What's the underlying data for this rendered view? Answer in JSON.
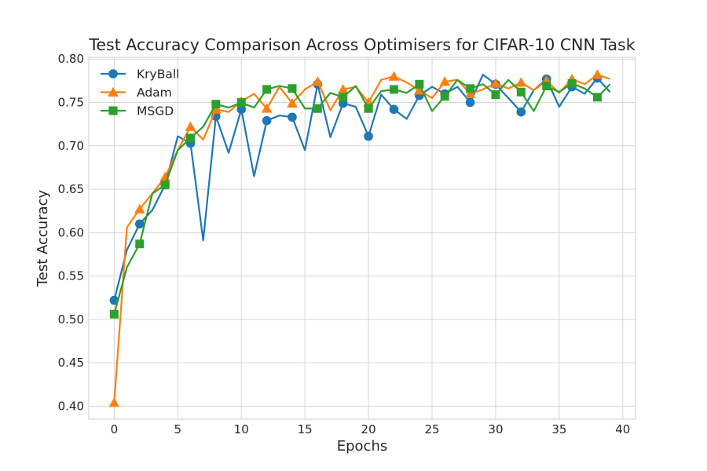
{
  "chart_data": {
    "type": "line",
    "title": "Test Accuracy Comparison Across Optimisers for CIFAR-10 CNN Task",
    "xlabel": "Epochs",
    "ylabel": "Test Accuracy",
    "xlim": [
      -2,
      41
    ],
    "ylim": [
      0.385,
      0.802
    ],
    "xticks": [
      0,
      5,
      10,
      15,
      20,
      25,
      30,
      35,
      40
    ],
    "yticks": [
      0.4,
      0.45,
      0.5,
      0.55,
      0.6,
      0.65,
      0.7,
      0.75,
      0.8
    ],
    "grid": true,
    "legend_position": "top-left",
    "x": [
      0,
      1,
      2,
      3,
      4,
      5,
      6,
      7,
      8,
      9,
      10,
      11,
      12,
      13,
      14,
      15,
      16,
      17,
      18,
      19,
      20,
      21,
      22,
      23,
      24,
      25,
      26,
      27,
      28,
      29,
      30,
      31,
      32,
      33,
      34,
      35,
      36,
      37,
      38,
      39
    ],
    "series": [
      {
        "name": "KryBall",
        "color": "#1f77b4",
        "marker": "circle",
        "values": [
          0.522,
          0.58,
          0.61,
          0.626,
          0.655,
          0.711,
          0.703,
          0.591,
          0.734,
          0.692,
          0.742,
          0.665,
          0.729,
          0.735,
          0.733,
          0.695,
          0.771,
          0.71,
          0.749,
          0.745,
          0.711,
          0.759,
          0.742,
          0.731,
          0.758,
          0.768,
          0.76,
          0.768,
          0.75,
          0.782,
          0.771,
          0.755,
          0.739,
          0.764,
          0.777,
          0.745,
          0.768,
          0.76,
          0.778,
          0.762
        ]
      },
      {
        "name": "Adam",
        "color": "#ff7f0e",
        "marker": "triangle",
        "values": [
          0.404,
          0.606,
          0.627,
          0.645,
          0.664,
          0.695,
          0.722,
          0.707,
          0.742,
          0.739,
          0.751,
          0.76,
          0.743,
          0.768,
          0.749,
          0.765,
          0.774,
          0.741,
          0.765,
          0.768,
          0.75,
          0.776,
          0.78,
          0.773,
          0.764,
          0.755,
          0.774,
          0.776,
          0.76,
          0.765,
          0.772,
          0.766,
          0.773,
          0.764,
          0.775,
          0.761,
          0.777,
          0.771,
          0.782,
          0.777
        ]
      },
      {
        "name": "MSGD",
        "color": "#2ca02c",
        "marker": "square",
        "values": [
          0.506,
          0.56,
          0.587,
          0.645,
          0.655,
          0.695,
          0.709,
          0.722,
          0.748,
          0.744,
          0.75,
          0.744,
          0.765,
          0.769,
          0.766,
          0.743,
          0.743,
          0.761,
          0.756,
          0.769,
          0.743,
          0.763,
          0.765,
          0.761,
          0.771,
          0.74,
          0.757,
          0.776,
          0.766,
          0.771,
          0.759,
          0.776,
          0.762,
          0.74,
          0.769,
          0.762,
          0.772,
          0.766,
          0.756,
          0.771
        ]
      }
    ]
  }
}
